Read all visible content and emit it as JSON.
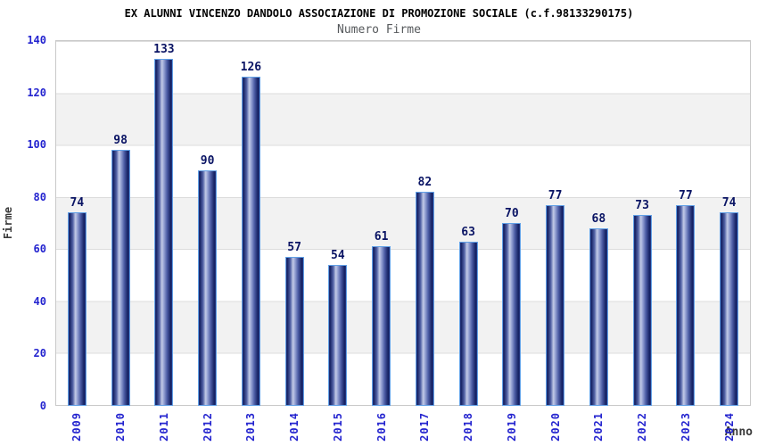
{
  "header": {
    "title": "EX ALUNNI VINCENZO DANDOLO ASSOCIAZIONE DI PROMOZIONE SOCIALE (c.f.98133290175)",
    "subtitle": "Numero Firme"
  },
  "colors": {
    "title_color": "#000000",
    "subtitle_color": "#56595c",
    "tick_label_blue": "#2424cf",
    "value_label_navy": "#0a1464",
    "axis_title_color": "#3a3a3a",
    "bar_border": "#61a0e6",
    "bar_dark": "#131f60",
    "bar_highlight": "#c3cbe7",
    "band_gray": "#f2f2f2",
    "grid_line": "#dcdcdc",
    "plot_border": "#c9c9c9"
  },
  "chart_data": {
    "type": "bar",
    "title": "EX ALUNNI VINCENZO DANDOLO ASSOCIAZIONE DI PROMOZIONE SOCIALE (c.f.98133290175)",
    "subtitle": "Numero Firme",
    "xlabel": "Anno",
    "ylabel": "Firme",
    "categories": [
      "2009",
      "2010",
      "2011",
      "2012",
      "2013",
      "2014",
      "2015",
      "2016",
      "2017",
      "2018",
      "2019",
      "2020",
      "2021",
      "2022",
      "2023",
      "2024"
    ],
    "values": [
      74,
      98,
      133,
      90,
      126,
      57,
      54,
      61,
      82,
      63,
      70,
      77,
      68,
      73,
      77,
      74
    ],
    "ylim": [
      0,
      140
    ],
    "yticks": [
      0,
      20,
      40,
      60,
      80,
      100,
      120,
      140
    ],
    "grid": "horizontal-bands",
    "legend": "none",
    "bar_labels_shown": true
  }
}
